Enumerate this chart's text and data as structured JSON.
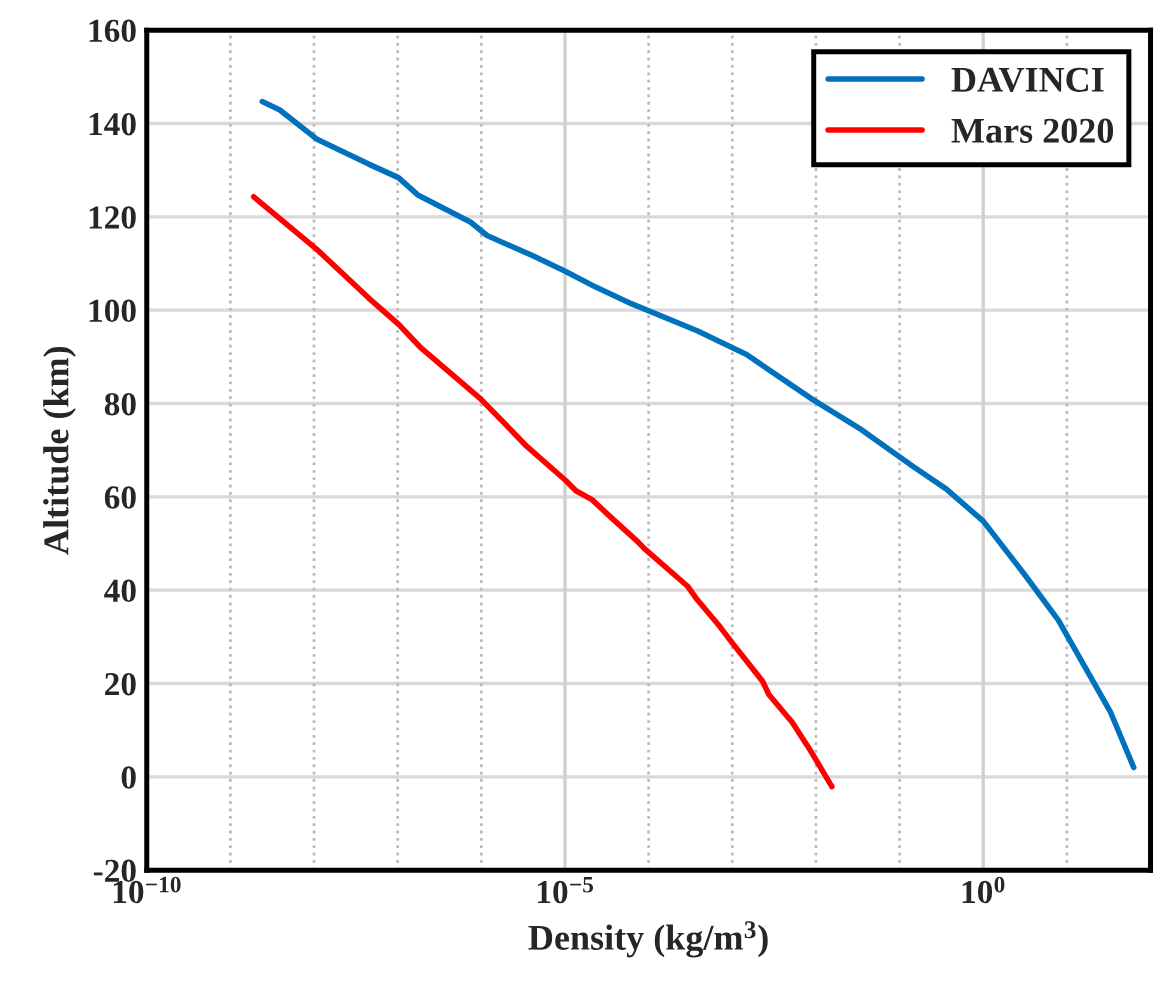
{
  "chart_data": {
    "type": "line",
    "xlabel": "Density (kg/m$^{3}$)",
    "ylabel": "Altitude (km)",
    "series": [
      {
        "name": "DAVINCI",
        "color": "#0072bd",
        "x": [
          2.4e-09,
          3.9e-09,
          1.07e-08,
          4.5e-08,
          1.02e-07,
          1.74e-07,
          7.4e-07,
          1.17e-06,
          4.2e-06,
          1.02e-05,
          2.3e-05,
          6.2e-05,
          0.00038,
          0.00148,
          0.0089,
          0.035,
          0.148,
          0.36,
          1.0,
          3.2,
          7.9,
          19.5,
          33,
          63
        ],
        "values": [
          144.7,
          142.9,
          136.7,
          131.3,
          128.4,
          124.7,
          118.9,
          116.0,
          111.6,
          108.3,
          105.0,
          101.4,
          95.6,
          90.5,
          81.0,
          74.4,
          66.4,
          61.7,
          54.8,
          43.1,
          33.6,
          21.2,
          14,
          2.0
        ]
      },
      {
        "name": "Mars 2020",
        "color": "#ff0000",
        "x": [
          1.9e-09,
          1.07e-08,
          4.5e-08,
          1.02e-07,
          1.9e-07,
          9.8e-07,
          3.5e-06,
          1.02e-05,
          1.35e-05,
          2.1e-05,
          3.6e-05,
          7.4e-05,
          8.9e-05,
          0.00029,
          0.00038,
          0.00071,
          0.00102,
          0.0023,
          0.00275,
          0.0052,
          0.0089,
          0.0155
        ],
        "values": [
          124.3,
          113.1,
          102.6,
          97.0,
          91.9,
          81.0,
          70.8,
          63.5,
          61.3,
          59.4,
          55.5,
          50.4,
          48.9,
          40.9,
          38.0,
          32.2,
          28.5,
          20.5,
          17.6,
          11.7,
          5.2,
          -2.1
        ]
      }
    ],
    "log": "x",
    "xlim": [
      1e-10,
      100
    ],
    "ylim": [
      -20,
      160
    ],
    "xticks": [
      {
        "value": 1e-10,
        "label": "10$^{−10}$"
      },
      {
        "value": 1e-09,
        "label": null
      },
      {
        "value": 1e-08,
        "label": null
      },
      {
        "value": 1e-07,
        "label": null
      },
      {
        "value": 1e-06,
        "label": null
      },
      {
        "value": 1e-05,
        "label": "10$^{−5}$"
      },
      {
        "value": 0.0001,
        "label": null
      },
      {
        "value": 0.001,
        "label": null
      },
      {
        "value": 0.01,
        "label": null
      },
      {
        "value": 0.1,
        "label": null
      },
      {
        "value": 1,
        "label": "10$^{0}$"
      },
      {
        "value": 10,
        "label": null
      },
      {
        "value": 100,
        "label": null
      }
    ],
    "yticks": [
      -20,
      0,
      20,
      40,
      60,
      80,
      100,
      120,
      140,
      160
    ],
    "grid": true,
    "legend": "top right",
    "line_style": "solid",
    "marker": "none"
  }
}
